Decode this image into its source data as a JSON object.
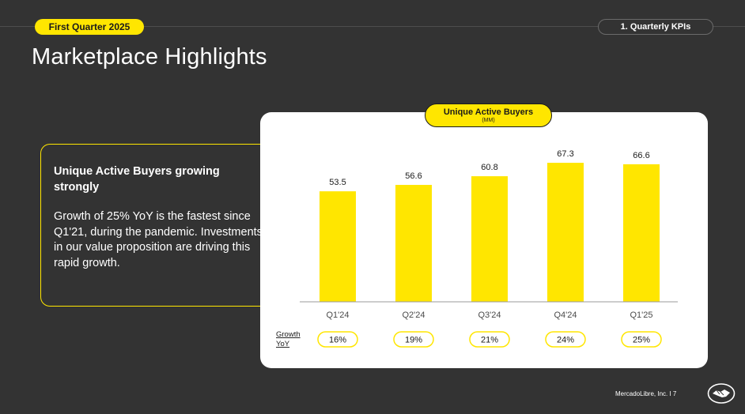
{
  "header": {
    "period_label": "First Quarter 2025",
    "section_label": "1. Quarterly KPIs",
    "title": "Marketplace Highlights"
  },
  "insight": {
    "heading": "Unique Active Buyers growing strongly",
    "body": "Growth of 25% YoY is the fastest since Q1'21, during the pandemic. Investments in our value proposition are driving this rapid growth."
  },
  "chart_data": {
    "type": "bar",
    "title": "Unique Active Buyers",
    "subtitle": "(MM)",
    "categories": [
      "Q1'24",
      "Q2'24",
      "Q3'24",
      "Q4'24",
      "Q1'25"
    ],
    "values": [
      53.5,
      56.6,
      60.8,
      67.3,
      66.6
    ],
    "value_labels": [
      "53.5",
      "56.6",
      "60.8",
      "67.3",
      "66.6"
    ],
    "ylim": [
      0,
      70
    ],
    "grid": false,
    "bar_color": "#ffe600",
    "growth_label_line1": "Growth",
    "growth_label_line2": "YoY",
    "growth_yoy": [
      "16%",
      "19%",
      "21%",
      "24%",
      "25%"
    ]
  },
  "footer": {
    "text": "MercadoLibre, Inc.  I  7",
    "logo_icon": "handshake-icon"
  },
  "colors": {
    "background": "#333333",
    "accent": "#ffe600",
    "card": "#ffffff"
  }
}
